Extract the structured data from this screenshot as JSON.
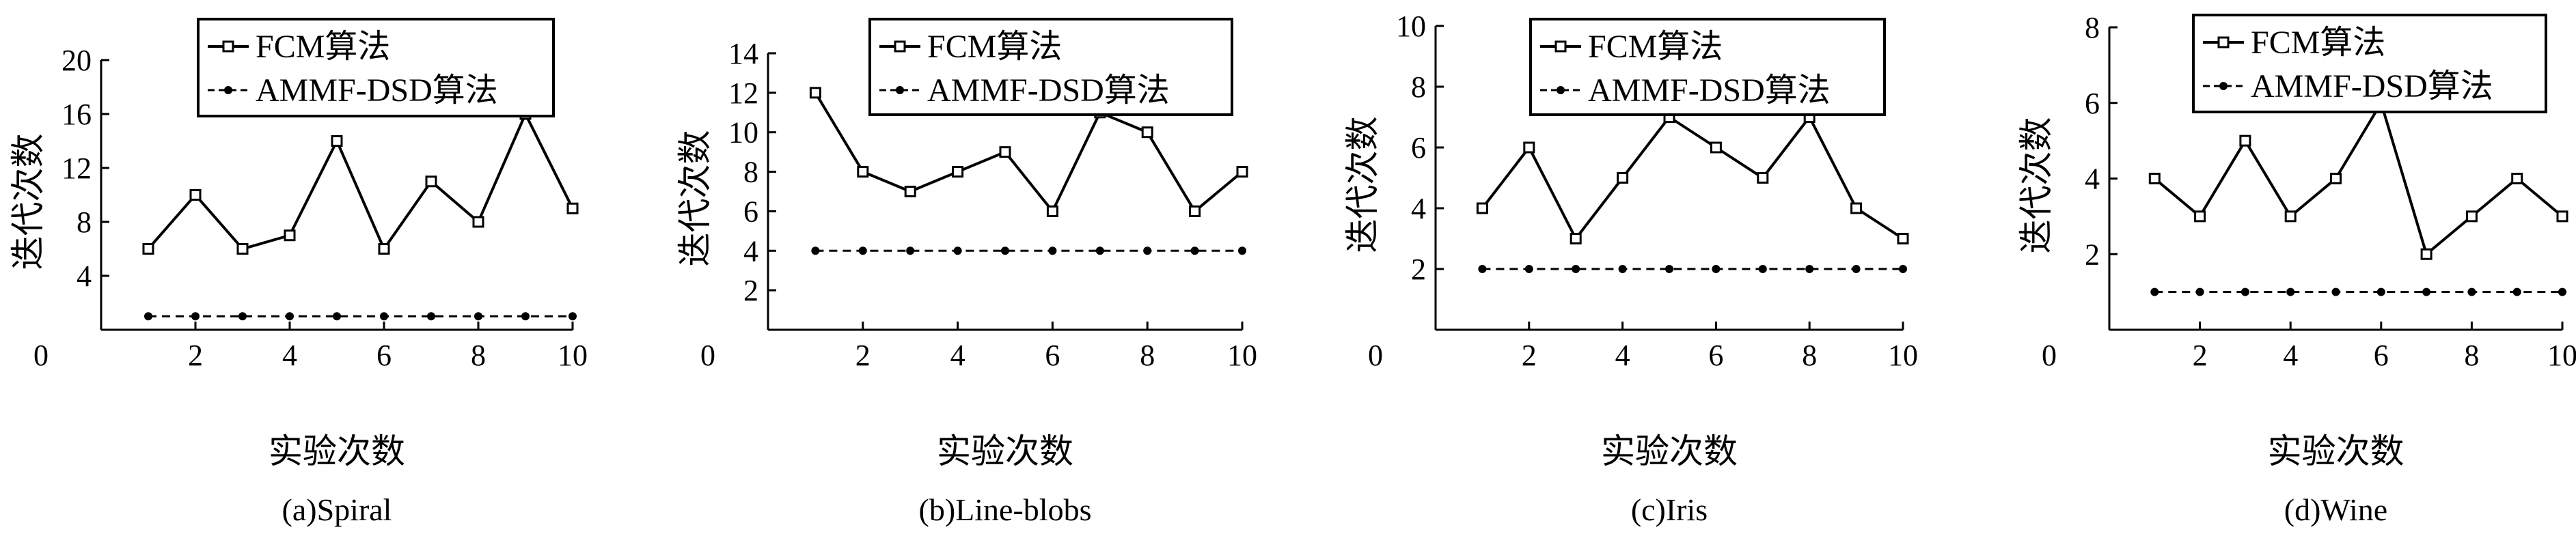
{
  "legend": {
    "fcm_label": "FCM算法",
    "ammf_label": "AMMF-DSD算法"
  },
  "chart_data": [
    {
      "type": "line",
      "caption": "(a)Spiral",
      "xlabel": "实验次数",
      "ylabel": "迭代次数",
      "xlim": [
        0,
        10
      ],
      "ylim": [
        0,
        20
      ],
      "xticks": [
        0,
        2,
        4,
        6,
        8,
        10
      ],
      "yticks": [
        4,
        8,
        12,
        16,
        20
      ],
      "x": [
        1,
        2,
        3,
        4,
        5,
        6,
        7,
        8,
        9,
        10
      ],
      "series": [
        {
          "name": "FCM算法",
          "values": [
            6,
            10,
            6,
            7,
            14,
            6,
            11,
            8,
            16,
            9
          ]
        },
        {
          "name": "AMMF-DSD算法",
          "values": [
            1,
            1,
            1,
            1,
            1,
            1,
            1,
            1,
            1,
            1
          ]
        }
      ]
    },
    {
      "type": "line",
      "caption": "(b)Line-blobs",
      "xlabel": "实验次数",
      "ylabel": "迭代次数",
      "xlim": [
        0,
        10
      ],
      "ylim": [
        0,
        14
      ],
      "xticks": [
        0,
        2,
        4,
        6,
        8,
        10
      ],
      "yticks": [
        2,
        4,
        6,
        8,
        10,
        12,
        14
      ],
      "x": [
        1,
        2,
        3,
        4,
        5,
        6,
        7,
        8,
        9,
        10
      ],
      "series": [
        {
          "name": "FCM算法",
          "values": [
            12,
            8,
            7,
            8,
            9,
            6,
            11,
            10,
            6,
            8
          ]
        },
        {
          "name": "AMMF-DSD算法",
          "values": [
            4,
            4,
            4,
            4,
            4,
            4,
            4,
            4,
            4,
            4
          ]
        }
      ]
    },
    {
      "type": "line",
      "caption": "(c)Iris",
      "xlabel": "实验次数",
      "ylabel": "迭代次数",
      "xlim": [
        0,
        10
      ],
      "ylim": [
        0,
        10
      ],
      "xticks": [
        0,
        2,
        4,
        6,
        8,
        10
      ],
      "yticks": [
        2,
        4,
        6,
        8,
        10
      ],
      "x": [
        1,
        2,
        3,
        4,
        5,
        6,
        7,
        8,
        9,
        10
      ],
      "series": [
        {
          "name": "FCM算法",
          "values": [
            4,
            6,
            3,
            5,
            7,
            6,
            5,
            7,
            4,
            3
          ]
        },
        {
          "name": "AMMF-DSD算法",
          "values": [
            2,
            2,
            2,
            2,
            2,
            2,
            2,
            2,
            2,
            2
          ]
        }
      ]
    },
    {
      "type": "line",
      "caption": "(d)Wine",
      "xlabel": "实验次数",
      "ylabel": "迭代次数",
      "xlim": [
        0,
        10
      ],
      "ylim": [
        0,
        8
      ],
      "xticks": [
        0,
        2,
        4,
        6,
        8,
        10
      ],
      "yticks": [
        2,
        4,
        6,
        8
      ],
      "x": [
        1,
        2,
        3,
        4,
        5,
        6,
        7,
        8,
        9,
        10
      ],
      "series": [
        {
          "name": "FCM算法",
          "values": [
            4,
            3,
            5,
            3,
            4,
            6,
            2,
            3,
            4,
            3
          ]
        },
        {
          "name": "AMMF-DSD算法",
          "values": [
            1,
            1,
            1,
            1,
            1,
            1,
            1,
            1,
            1,
            1
          ]
        }
      ]
    }
  ]
}
